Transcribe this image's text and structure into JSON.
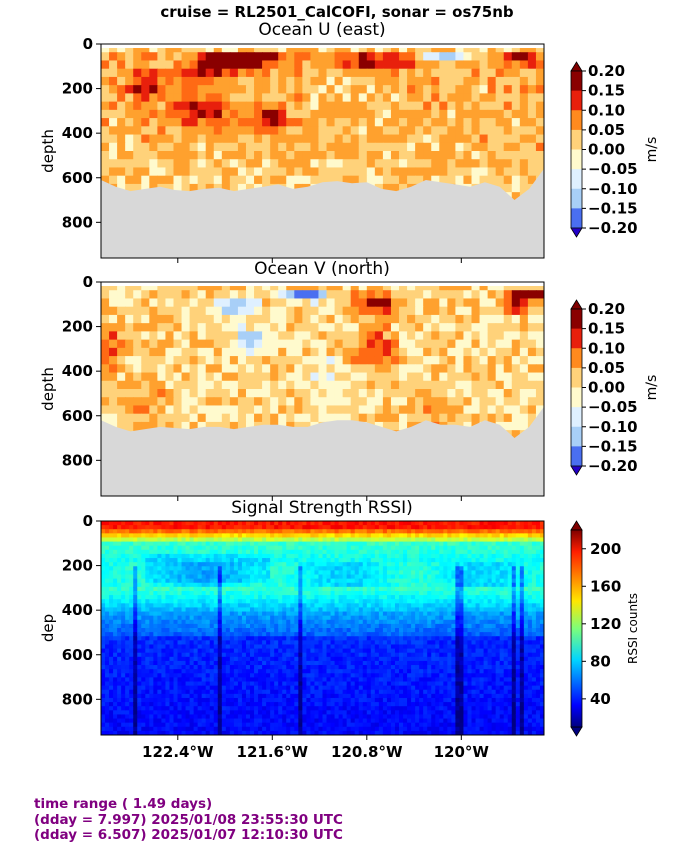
{
  "suptitle": "cruise = RL2501_CalCOFI,  sonar = os75nb",
  "footer": {
    "line1": "time range ( 1.49 days)",
    "line2": "(dday = 7.997) 2025/01/08 23:55:30 UTC",
    "line3": "(dday = 6.507) 2025/01/07 12:10:30 UTC"
  },
  "chart_data": [
    {
      "type": "heatmap",
      "title": "Ocean U (east)",
      "ylabel": "depth",
      "yticks": [
        "0",
        "200",
        "400",
        "600",
        "800"
      ],
      "ylim": [
        960,
        0
      ],
      "xlim": [
        -123.05,
        -119.3
      ],
      "colorbar": {
        "label": "m/s",
        "ticks": [
          "0.20",
          "0.15",
          "0.10",
          "0.05",
          "0.00",
          "−0.05",
          "−0.10",
          "−0.15",
          "−0.20"
        ],
        "range": [
          -0.2,
          0.2
        ]
      },
      "seabed_depth": [
        610,
        640,
        660,
        650,
        640,
        655,
        660,
        650,
        645,
        660,
        650,
        640,
        630,
        650,
        640,
        620,
        615,
        625,
        620,
        650,
        660,
        640,
        610,
        620,
        630,
        640,
        620,
        640,
        700,
        650,
        560
      ],
      "no_data_color": "#d8d8d8"
    },
    {
      "type": "heatmap",
      "title": "Ocean V (north)",
      "ylabel": "depth",
      "yticks": [
        "0",
        "200",
        "400",
        "600",
        "800"
      ],
      "ylim": [
        960,
        0
      ],
      "xlim": [
        -123.05,
        -119.3
      ],
      "colorbar": {
        "label": "m/s",
        "ticks": [
          "0.20",
          "0.15",
          "0.10",
          "0.05",
          "0.00",
          "−0.05",
          "−0.10",
          "−0.15",
          "−0.20"
        ],
        "range": [
          -0.2,
          0.2
        ]
      },
      "seabed_depth": [
        620,
        650,
        670,
        660,
        650,
        655,
        660,
        650,
        650,
        660,
        650,
        640,
        640,
        650,
        650,
        630,
        620,
        620,
        630,
        650,
        670,
        650,
        620,
        640,
        640,
        650,
        620,
        640,
        700,
        650,
        560
      ],
      "no_data_color": "#d8d8d8"
    },
    {
      "type": "heatmap",
      "title": "Signal Strength RSSI)",
      "ylabel": "dep",
      "yticks": [
        "0",
        "200",
        "400",
        "600",
        "800"
      ],
      "ylim": [
        960,
        0
      ],
      "xlim": [
        -123.05,
        -119.3
      ],
      "xticks": [
        {
          "value": -122.4,
          "label": "122.4°W"
        },
        {
          "value": -121.6,
          "label": "121.6°W"
        },
        {
          "value": -120.8,
          "label": "120.8°W"
        },
        {
          "value": -120.0,
          "label": "120°W"
        }
      ],
      "colorbar": {
        "label": "RSSI counts",
        "ticks": [
          "200",
          "160",
          "120",
          "80",
          "40"
        ],
        "tick_values": [
          200,
          160,
          120,
          80,
          40
        ],
        "range": [
          10,
          220
        ]
      }
    }
  ]
}
